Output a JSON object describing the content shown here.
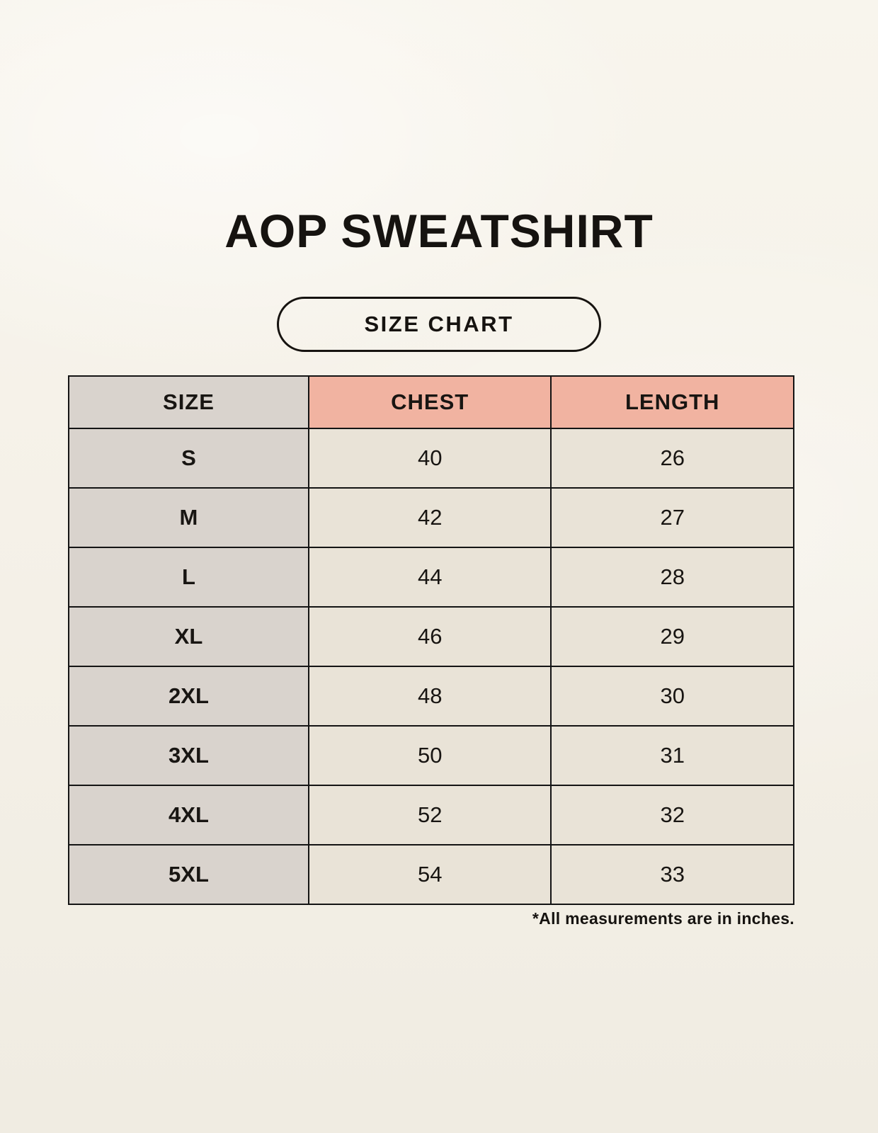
{
  "page": {
    "title": "AOP SWEATSHIRT",
    "badge_label": "SIZE CHART",
    "footnote": "*All measurements are in inches."
  },
  "colors": {
    "background": "#f5f1e8",
    "size_column_bg": "#d9d3cd",
    "header_accent_bg": "#f1b3a1",
    "value_cell_bg": "#e9e3d7",
    "border": "#141414",
    "text": "#161310"
  },
  "chart_data": {
    "type": "table",
    "title": "AOP SWEATSHIRT SIZE CHART",
    "units": "inches",
    "columns": [
      "SIZE",
      "CHEST",
      "LENGTH"
    ],
    "rows": [
      [
        "S",
        "40",
        "26"
      ],
      [
        "M",
        "42",
        "27"
      ],
      [
        "L",
        "44",
        "28"
      ],
      [
        "XL",
        "46",
        "29"
      ],
      [
        "2XL",
        "48",
        "30"
      ],
      [
        "3XL",
        "50",
        "31"
      ],
      [
        "4XL",
        "52",
        "32"
      ],
      [
        "5XL",
        "54",
        "33"
      ]
    ]
  }
}
